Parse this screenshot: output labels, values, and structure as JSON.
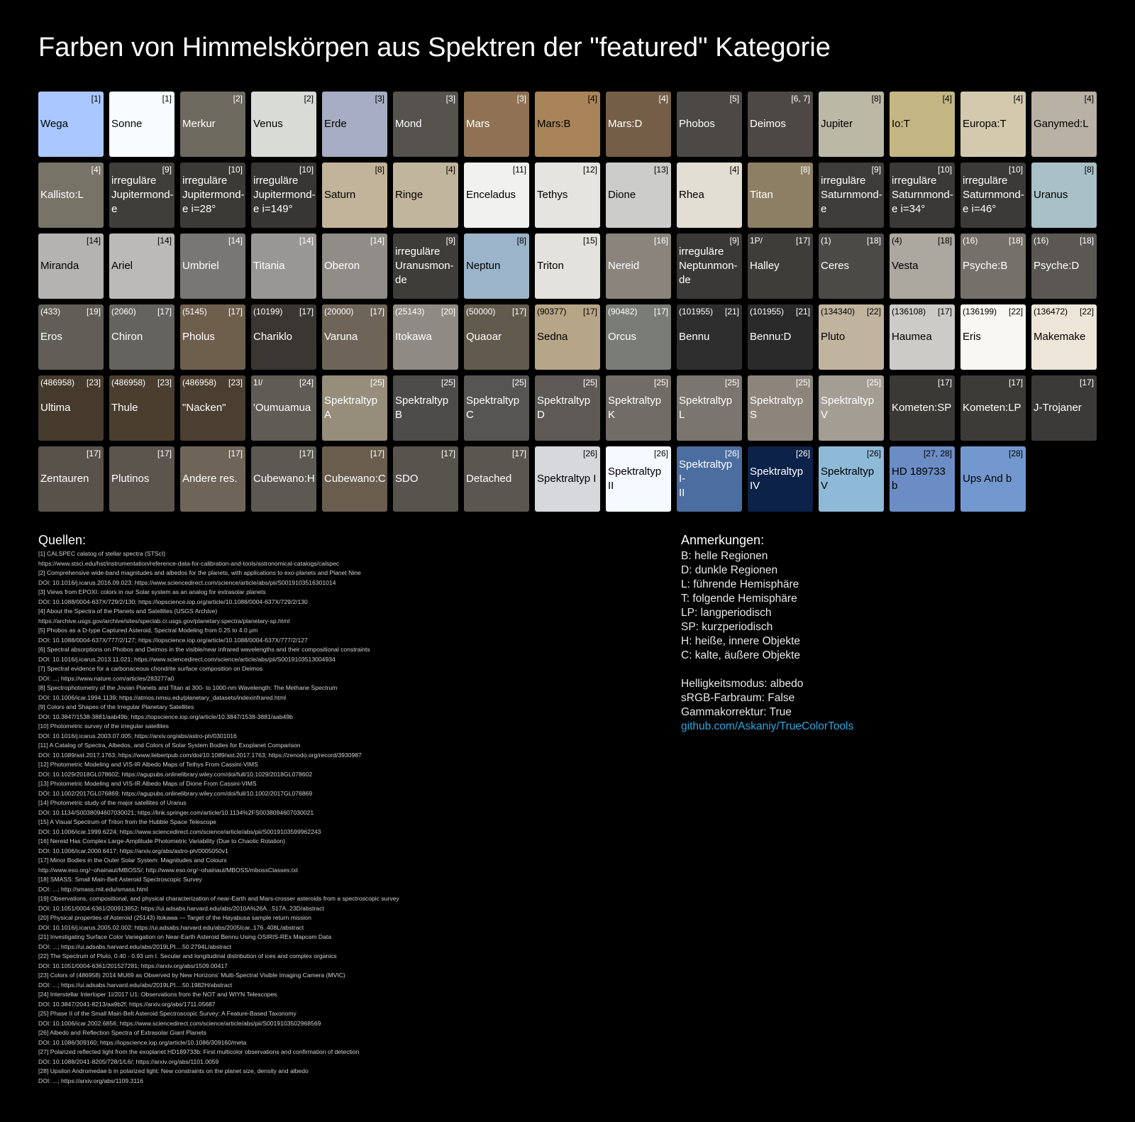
{
  "title": "Farben von Himmelskörpen aus Spektren der \"featured\" Kategorie",
  "tiles": [
    {
      "name": "Wega",
      "ref": "[1]",
      "num": "",
      "bg": "#aac8ff",
      "light": true
    },
    {
      "name": "Sonne",
      "ref": "[1]",
      "num": "",
      "bg": "#f7fdff",
      "light": true
    },
    {
      "name": "Merkur",
      "ref": "[2]",
      "num": "",
      "bg": "#6d695f",
      "light": false
    },
    {
      "name": "Venus",
      "ref": "[2]",
      "num": "",
      "bg": "#d9dbd6",
      "light": true
    },
    {
      "name": "Erde",
      "ref": "[3]",
      "num": "",
      "bg": "#a7adc2",
      "light": true
    },
    {
      "name": "Mond",
      "ref": "[3]",
      "num": "",
      "bg": "#56524d",
      "light": false
    },
    {
      "name": "Mars",
      "ref": "[3]",
      "num": "",
      "bg": "#8e7253",
      "light": false
    },
    {
      "name": "Mars:B",
      "ref": "[4]",
      "num": "",
      "bg": "#a98459",
      "light": true
    },
    {
      "name": "Mars:D",
      "ref": "[4]",
      "num": "",
      "bg": "#745e47",
      "light": false
    },
    {
      "name": "Phobos",
      "ref": "[5]",
      "num": "",
      "bg": "#4b4845",
      "light": false
    },
    {
      "name": "Deimos",
      "ref": "[6, 7]",
      "num": "",
      "bg": "#4d4845",
      "light": false
    },
    {
      "name": "Jupiter",
      "ref": "[8]",
      "num": "",
      "bg": "#bcb8a6",
      "light": true
    },
    {
      "name": "Io:T",
      "ref": "[4]",
      "num": "",
      "bg": "#c3b683",
      "light": true
    },
    {
      "name": "Europa:T",
      "ref": "[4]",
      "num": "",
      "bg": "#d3c9ad",
      "light": true
    },
    {
      "name": "Ganymed:L",
      "ref": "[4]",
      "num": "",
      "bg": "#b8b1a4",
      "light": true
    },
    {
      "name": "Kallisto:L",
      "ref": "[4]",
      "num": "",
      "bg": "#787367",
      "light": false
    },
    {
      "name": "irreguläre\nJupitermond-\ne",
      "ref": "[9]",
      "num": "",
      "bg": "#403e3b",
      "light": false
    },
    {
      "name": "irreguläre\nJupitermond-\ne i=28°",
      "ref": "[10]",
      "num": "",
      "bg": "#3c3a37",
      "light": false
    },
    {
      "name": "irreguläre\nJupitermond-\ne i=149°",
      "ref": "[10]",
      "num": "",
      "bg": "#383634",
      "light": false
    },
    {
      "name": "Saturn",
      "ref": "[8]",
      "num": "",
      "bg": "#c2b49a",
      "light": true
    },
    {
      "name": "Ringe",
      "ref": "[4]",
      "num": "",
      "bg": "#c2b59d",
      "light": true
    },
    {
      "name": "Enceladus",
      "ref": "[11]",
      "num": "",
      "bg": "#f1f2ef",
      "light": true
    },
    {
      "name": "Tethys",
      "ref": "[12]",
      "num": "",
      "bg": "#e6e4e0",
      "light": true
    },
    {
      "name": "Dione",
      "ref": "[13]",
      "num": "",
      "bg": "#cccdca",
      "light": true
    },
    {
      "name": "Rhea",
      "ref": "[4]",
      "num": "",
      "bg": "#e2ded3",
      "light": true
    },
    {
      "name": "Titan",
      "ref": "[8]",
      "num": "",
      "bg": "#8d7f64",
      "light": false
    },
    {
      "name": "irreguläre\nSaturnmond-\ne",
      "ref": "[9]",
      "num": "",
      "bg": "#3e3c3a",
      "light": false
    },
    {
      "name": "irreguläre\nSaturnmond-\ne i=34°",
      "ref": "[10]",
      "num": "",
      "bg": "#3a3937",
      "light": false
    },
    {
      "name": "irreguläre\nSaturnmond-\ne i=46°",
      "ref": "[10]",
      "num": "",
      "bg": "#3b3a38",
      "light": false
    },
    {
      "name": "Uranus",
      "ref": "[8]",
      "num": "",
      "bg": "#a9c0c7",
      "light": true
    },
    {
      "name": "Miranda",
      "ref": "[14]",
      "num": "",
      "bg": "#b4b3b1",
      "light": true
    },
    {
      "name": "Ariel",
      "ref": "[14]",
      "num": "",
      "bg": "#bbbab8",
      "light": true
    },
    {
      "name": "Umbriel",
      "ref": "[14]",
      "num": "",
      "bg": "#787775",
      "light": false
    },
    {
      "name": "Titania",
      "ref": "[14]",
      "num": "",
      "bg": "#989795",
      "light": false
    },
    {
      "name": "Oberon",
      "ref": "[14]",
      "num": "",
      "bg": "#908d89",
      "light": false
    },
    {
      "name": "irreguläre\nUranusmon-\nde",
      "ref": "[9]",
      "num": "",
      "bg": "#3f3d3a",
      "light": false
    },
    {
      "name": "Neptun",
      "ref": "[8]",
      "num": "",
      "bg": "#9cb4ca",
      "light": true
    },
    {
      "name": "Triton",
      "ref": "[15]",
      "num": "",
      "bg": "#e4e2dd",
      "light": true
    },
    {
      "name": "Nereid",
      "ref": "[16]",
      "num": "",
      "bg": "#8a847c",
      "light": false
    },
    {
      "name": "irreguläre\nNeptunmon-\nde",
      "ref": "[9]",
      "num": "",
      "bg": "#3a3937",
      "light": false
    },
    {
      "name": "Halley",
      "ref": "[17]",
      "num": "1P/",
      "bg": "#3f3d3a",
      "light": false
    },
    {
      "name": "Ceres",
      "ref": "[18]",
      "num": "(1)",
      "bg": "#4b4a47",
      "light": false
    },
    {
      "name": "Vesta",
      "ref": "[18]",
      "num": "(4)",
      "bg": "#aca79f",
      "light": true
    },
    {
      "name": "Psyche:B",
      "ref": "[18]",
      "num": "(16)",
      "bg": "#75716a",
      "light": false
    },
    {
      "name": "Psyche:D",
      "ref": "[18]",
      "num": "(16)",
      "bg": "#5b5853",
      "light": false
    },
    {
      "name": "Eros",
      "ref": "[19]",
      "num": "(433)",
      "bg": "#625d56",
      "light": false
    },
    {
      "name": "Chiron",
      "ref": "[17]",
      "num": "(2060)",
      "bg": "#656360",
      "light": false
    },
    {
      "name": "Pholus",
      "ref": "[17]",
      "num": "(5145)",
      "bg": "#6e5f4c",
      "light": false
    },
    {
      "name": "Chariklo",
      "ref": "[17]",
      "num": "(10199)",
      "bg": "#3a3733",
      "light": false
    },
    {
      "name": "Varuna",
      "ref": "[17]",
      "num": "(20000)",
      "bg": "#6e6558",
      "light": false
    },
    {
      "name": "Itokawa",
      "ref": "[20]",
      "num": "(25143)",
      "bg": "#8f8a83",
      "light": false
    },
    {
      "name": "Quaoar",
      "ref": "[17]",
      "num": "(50000)",
      "bg": "#625a4d",
      "light": false
    },
    {
      "name": "Sedna",
      "ref": "[17]",
      "num": "(90377)",
      "bg": "#b7a587",
      "light": true
    },
    {
      "name": "Orcus",
      "ref": "[17]",
      "num": "(90482)",
      "bg": "#7a7c78",
      "light": false
    },
    {
      "name": "Bennu",
      "ref": "[21]",
      "num": "(101955)",
      "bg": "#2e2e2e",
      "light": false
    },
    {
      "name": "Bennu:D",
      "ref": "[21]",
      "num": "(101955)",
      "bg": "#2a2a2a",
      "light": false
    },
    {
      "name": "Pluto",
      "ref": "[22]",
      "num": "(134340)",
      "bg": "#c1b49e",
      "light": true
    },
    {
      "name": "Haumea",
      "ref": "[17]",
      "num": "(136108)",
      "bg": "#cccbc8",
      "light": true
    },
    {
      "name": "Eris",
      "ref": "[22]",
      "num": "(136199)",
      "bg": "#f8f7f2",
      "light": true
    },
    {
      "name": "Makemake",
      "ref": "[22]",
      "num": "(136472)",
      "bg": "#ede5d8",
      "light": true
    },
    {
      "name": "Ultima",
      "ref": "[23]",
      "num": "(486958)",
      "bg": "#453a2c",
      "light": false
    },
    {
      "name": "Thule",
      "ref": "[23]",
      "num": "(486958)",
      "bg": "#4a3e2f",
      "light": false
    },
    {
      "name": "\"Nacken\"",
      "ref": "[23]",
      "num": "(486958)",
      "bg": "#4b3f31",
      "light": false
    },
    {
      "name": "'Oumuamua",
      "ref": "[24]",
      "num": "1I/",
      "bg": "#5f5b55",
      "light": false
    },
    {
      "name": "Spektraltyp\nA",
      "ref": "[25]",
      "num": "",
      "bg": "#968d7b",
      "light": false
    },
    {
      "name": "Spektraltyp B",
      "ref": "[25]",
      "num": "",
      "bg": "#4d4c4b",
      "light": false
    },
    {
      "name": "Spektraltyp\nC",
      "ref": "[25]",
      "num": "",
      "bg": "#575553",
      "light": false
    },
    {
      "name": "Spektraltyp\nD",
      "ref": "[25]",
      "num": "",
      "bg": "#5e5954",
      "light": false
    },
    {
      "name": "Spektraltyp\nK",
      "ref": "[25]",
      "num": "",
      "bg": "#716c65",
      "light": false
    },
    {
      "name": "Spektraltyp L",
      "ref": "[25]",
      "num": "",
      "bg": "#7a756f",
      "light": false
    },
    {
      "name": "Spektraltyp S",
      "ref": "[25]",
      "num": "",
      "bg": "#8d857b",
      "light": false
    },
    {
      "name": "Spektraltyp\nV",
      "ref": "[25]",
      "num": "",
      "bg": "#a49d93",
      "light": false
    },
    {
      "name": "Kometen:SP",
      "ref": "[17]",
      "num": "",
      "bg": "#3b3936",
      "light": false
    },
    {
      "name": "Kometen:LP",
      "ref": "[17]",
      "num": "",
      "bg": "#3d3b38",
      "light": false
    },
    {
      "name": "J-Trojaner",
      "ref": "[17]",
      "num": "",
      "bg": "#3c3a38",
      "light": false
    },
    {
      "name": "Zentauren",
      "ref": "[17]",
      "num": "",
      "bg": "#58524b",
      "light": false
    },
    {
      "name": "Plutinos",
      "ref": "[17]",
      "num": "",
      "bg": "#5b554d",
      "light": false
    },
    {
      "name": "Andere res.",
      "ref": "[17]",
      "num": "",
      "bg": "#6e6558",
      "light": false
    },
    {
      "name": "Cubewano:H",
      "ref": "[17]",
      "num": "",
      "bg": "#5c5852",
      "light": false
    },
    {
      "name": "Cubewano:C",
      "ref": "[17]",
      "num": "",
      "bg": "#695d4e",
      "light": false
    },
    {
      "name": "SDO",
      "ref": "[17]",
      "num": "",
      "bg": "#57534d",
      "light": false
    },
    {
      "name": "Detached",
      "ref": "[17]",
      "num": "",
      "bg": "#5b5650",
      "light": false
    },
    {
      "name": "Spektraltyp I",
      "ref": "[26]",
      "num": "",
      "bg": "#d7d8dc",
      "light": true
    },
    {
      "name": "Spektraltyp II",
      "ref": "[26]",
      "num": "",
      "bg": "#f6f9ff",
      "light": true
    },
    {
      "name": "Spektraltyp I-\nII",
      "ref": "[26]",
      "num": "",
      "bg": "#4b6d9f",
      "light": false
    },
    {
      "name": "Spektraltyp\nIV",
      "ref": "[26]",
      "num": "",
      "bg": "#0c2248",
      "light": false
    },
    {
      "name": "Spektraltyp\nV",
      "ref": "[26]",
      "num": "",
      "bg": "#8ebad8",
      "light": true
    },
    {
      "name": "HD 189733 b",
      "ref": "[27, 28]",
      "num": "",
      "bg": "#6b8cc4",
      "light": true
    },
    {
      "name": "Ups And b",
      "ref": "[28]",
      "num": "",
      "bg": "#7398cf",
      "light": true
    }
  ],
  "sources_title": "Quellen:",
  "sources": [
    "[1] CALSPEC calatog of stellar spectra (STScI)",
    "https://www.stsci.edu/hst/instrumentation/reference-data-for-calibration-and-tools/astronomical-catalogs/calspec",
    "[2] Comprehensive wide-band magnitudes and albedos for the planets, with applications to exo-planets and Planet Nine",
    "DOI: 10.1016/j.icarus.2016.09.023; https://www.sciencedirect.com/science/article/abs/pii/S0019103516301014",
    "[3] Views from EPOXI: colors in our Solar system as an analog for extrasolar planets",
    "DOI: 10.1088/0004-637X/729/2/130; https://iopscience.iop.org/article/10.1088/0004-637X/729/2/130",
    "[4] About the Spectra of the Planets and Satellites (USGS Archive)",
    "https://archive.usgs.gov/archive/sites/speclab.cr.usgs.gov/planetary.spectra/planetary-sp.html",
    "[5] Phobos as a D-type Captured Asteroid, Spectral Modeling from 0.25 to 4.0 μm",
    "DOI: 10.1088/0004-637X/777/2/127; https://iopscience.iop.org/article/10.1088/0004-637X/777/2/127",
    "[6] Spectral absorptions on Phobos and Deimos in the visible/near infrared wavelengths and their compositional constraints",
    "DOI: 10.1016/j.icarus.2013.11.021; https://www.sciencedirect.com/science/article/abs/pii/S0019103513004934",
    "[7] Spectral evidence for a carbonaceous chondrite surface composition on Deimos",
    "DOI: ...; https://www.nature.com/articles/283277a0",
    "[8] Spectrophotometry of the Jovian Planets and Titan at 300- to 1000-nm Wavelength: The Methane Spectrum",
    "DOI: 10.1006/icar.1994.1139; https://atmos.nmsu.edu/planetary_datasets/indexinfrared.html",
    "[9] Colors and Shapes of the Irregular Planetary Satellites",
    "DOI: 10.3847/1538-3881/aab49b; https://iopscience.iop.org/article/10.3847/1538-3881/aab49b",
    "[10] Photometric survey of the irregular satellites",
    "DOI: 10.1016/j.icarus.2003.07.005; https://arxiv.org/abs/astro-ph/0301016",
    "[11] A Catalog of Spectra, Albedos, and Colors of Solar System Bodies for Exoplanet Comparison",
    "DOI: 10.1089/ast.2017.1763; https://www.liebertpub.com/doi/10.1089/ast.2017.1763; https://zenodo.org/record/3930987",
    "[12] Photometric Modeling and VIS-IR Albedo Maps of Tethys From Cassini-VIMS",
    "DOI: 10.1029/2018GL078602; https://agupubs.onlinelibrary.wiley.com/doi/full/10.1029/2018GL078602",
    "[13] Photometric Modeling and VIS-IR Albedo Maps of Dione From Cassini-VIMS",
    "DOI: 10.1002/2017GL076869; https://agupubs.onlinelibrary.wiley.com/doi/full/10.1002/2017GL076869",
    "[14] Photometric study of the major satellites of Uranus",
    "DOI: 10.1134/S0038094607030021; https://link.springer.com/article/10.1134%2FS0038094607030021",
    "[15] A Visual Spectrum of Triton from the Hubble Space Telescope",
    "DOI: 10.1006/icar.1999.6224; https://www.sciencedirect.com/science/article/abs/pii/S0019103599962243",
    "[16] Nereid Has Complex Large-Amplitude Photometric Variability (Due to Chaotic Rotation)",
    "DOI: 10.1006/icar.2000.6417; https://arxiv.org/abs/astro-ph/0005050v1",
    "[17] Minor Bodies in the Outer Solar System: Magnitudes and Colours",
    "http://www.eso.org/~ohainaut/MBOSS/; http://www.eso.org/~ohainaut/MBOSS/mbossClasses.txt",
    "[18] SMASS: Small Main-Belt Asteroid Spectroscopic Survey",
    "DOI: ...; http://smass.mit.edu/smass.html",
    "[19] Observations, compositional, and physical characterization of near-Earth and Mars-crosser asteroids from a spectroscopic survey",
    "DOI: 10.1051/0004-6361/200913852; https://ui.adsabs.harvard.edu/abs/2010A%26A...517A..23D/abstract",
    "[20] Physical properties of Asteroid (25143) Itokawa — Target of the Hayabusa sample return mission",
    "DOI: 10.1016/j.icarus.2005.02.002; https://ui.adsabs.harvard.edu/abs/2005Icar..176..408L/abstract",
    "[21] Investigating Surface Color Variegation on Near-Earth Asteroid Bennu Using OSIRIS-REx Mapcam Data",
    "DOI: ...; https://ui.adsabs.harvard.edu/abs/2019LPI....50.2794L/abstract",
    "[22] The Spectrum of Pluto, 0.40 - 0.93 um I. Secular and longitudinal distribution of ices and complex organics",
    "DOI: 10.1051/0004-6361/201527281; https://arxiv.org/abs/1509.00417",
    "[23] Colors of (486958) 2014 MU69 as Observed by New Horizons' Multi-Spectral Visible Imaging Camera (MVIC)",
    "DOI: ...; https://ui.adsabs.harvard.edu/abs/2019LPI....50.1982H/abstract",
    "[24] Interstellar Interloper 1I/2017 U1: Observations from the NOT and WIYN Telescopes",
    "DOI: 10.3847/2041-8213/aa9b2f; https://arxiv.org/abs/1711.05687",
    "[25] Phase II of the Small Main-Belt Asteroid Spectroscopic Survey: A Feature-Based Taxonomy",
    "DOI: 10.1006/icar.2002.6856; https://www.sciencedirect.com/science/article/abs/pii/S0019103502968569",
    "[26] Albedo and Reflection Spectra of Extrasolar Giant Planets",
    "DOI: 10.1086/309160; https://iopscience.iop.org/article/10.1086/309160/meta",
    "[27] Polarized reflected light from the exoplanet HD189733b: First multicolor observations and confirmation of detection",
    "DOI: 10.1088/2041-8205/728/1/L6/; https://arxiv.org/abs/1101.0059",
    "[28] Upsilon Andromedae b in polarized light: New constraints on the planet size, density and albedo",
    "DOI: ...; https://arxiv.org/abs/1109.3116"
  ],
  "notes_title": "Anmerkungen:",
  "notes": [
    "B: helle Regionen",
    "D: dunkle Regionen",
    "L: führende Hemisphäre",
    "T: folgende Hemisphäre",
    "LP: langperiodisch",
    "SP: kurzperiodisch",
    "H: heiße, innere Objekte",
    "C: kalte, äußere Objekte"
  ],
  "settings": {
    "brightness_mode": "Helligkeitsmodus: albedo",
    "srgb": "sRGB-Farbraum: False",
    "gamma": "Gammakorrektur: True",
    "link": "github.com/Askaniy/TrueColorTools"
  },
  "colors": {
    "background": "#000000",
    "text": "#ffffff",
    "link": "#29a8e0"
  }
}
